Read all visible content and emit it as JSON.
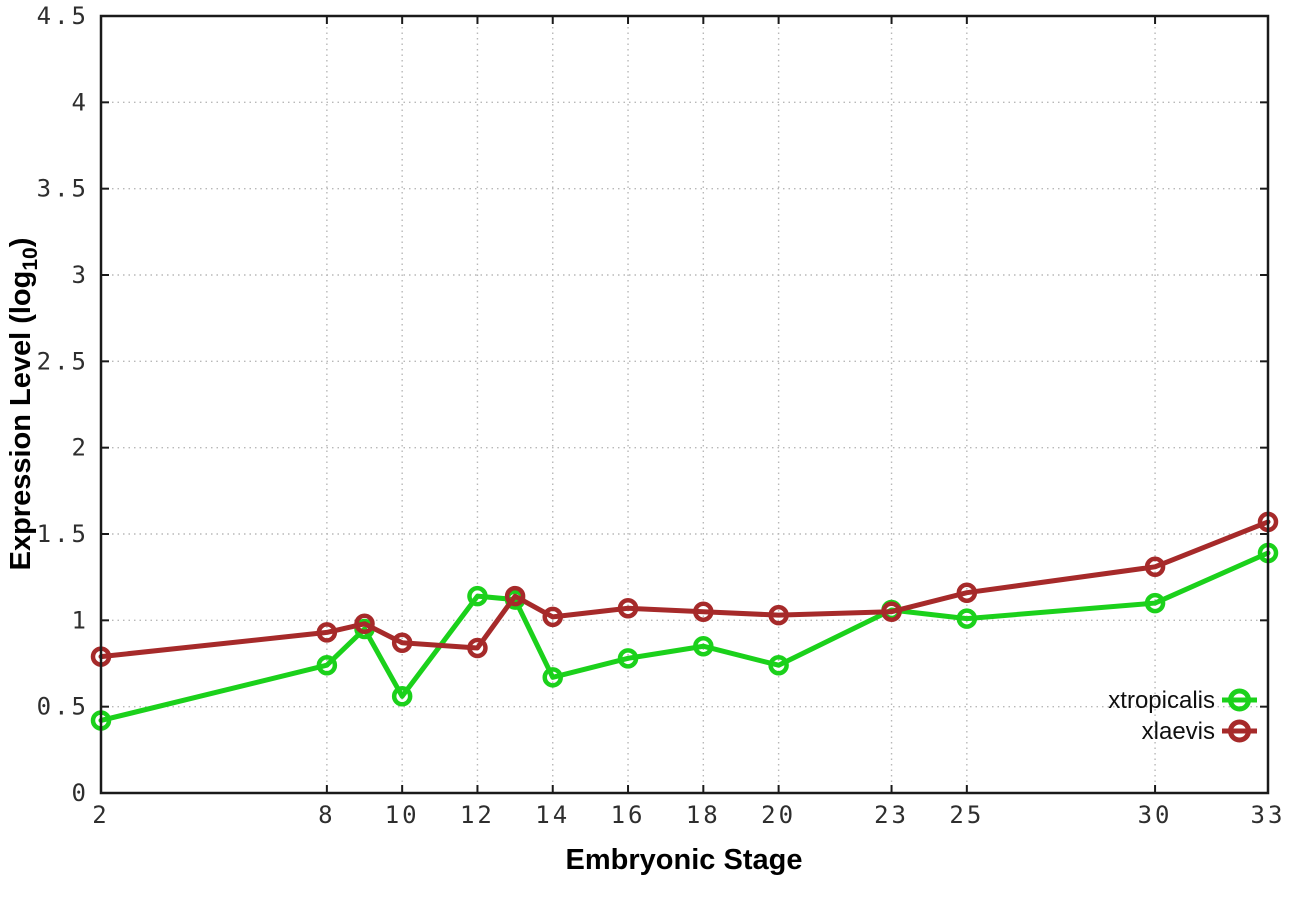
{
  "background_color": "#ffffff",
  "chart_data": {
    "type": "line",
    "title": "",
    "xlabel": "Embryonic Stage",
    "ylabel": "Expression Level (log10)",
    "ylabel_parts": {
      "pre": "Expression Level (log",
      "sub": "10",
      "post": ")"
    },
    "x": [
      2,
      8,
      9,
      10,
      12,
      13,
      14,
      16,
      18,
      20,
      23,
      25,
      30,
      33
    ],
    "series": [
      {
        "name": "xtropicalis",
        "color": "#1bd11b",
        "marker": "open-circle",
        "values": [
          0.42,
          0.74,
          0.95,
          0.56,
          1.14,
          1.12,
          0.67,
          0.78,
          0.85,
          0.74,
          1.06,
          1.01,
          1.1,
          1.39
        ]
      },
      {
        "name": "xlaevis",
        "color": "#a62a2a",
        "marker": "open-circle",
        "values": [
          0.79,
          0.93,
          0.98,
          0.87,
          0.84,
          1.14,
          1.02,
          1.07,
          1.05,
          1.03,
          1.05,
          1.16,
          1.31,
          1.57
        ]
      }
    ],
    "xlim": [
      2,
      33
    ],
    "ylim": [
      0,
      4.5
    ],
    "xticks": [
      2,
      8,
      10,
      12,
      14,
      16,
      18,
      20,
      23,
      25,
      30,
      33
    ],
    "yticks": [
      "0",
      "0.5",
      "1",
      "1.5",
      "2",
      "2.5",
      "3",
      "3.5",
      "4",
      "4.5"
    ],
    "grid": true,
    "grid_style": "dotted",
    "grid_color": "#b8b8b8",
    "border_color": "#1a1a1a",
    "legend_position": "inside-bottom-right",
    "legend_order": [
      "xtropicalis",
      "xlaevis"
    ]
  }
}
